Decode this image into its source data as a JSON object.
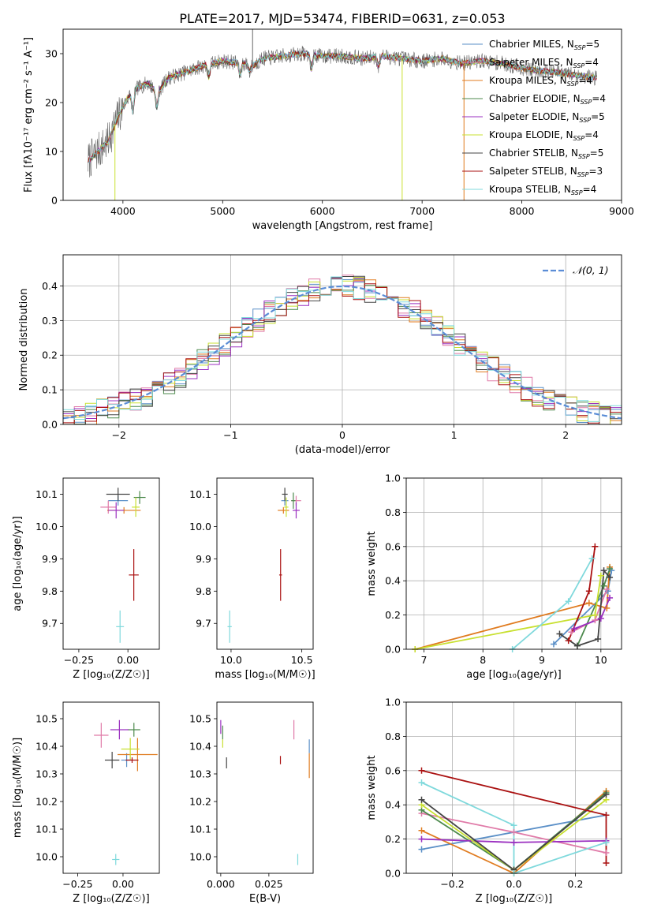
{
  "figure_title": "PLATE=2017, MJD=53474, FIBERID=0631, z=0.053",
  "colors": {
    "Chabrier MILES": "#5a8fc7",
    "Salpeter MILES": "#e07aa8",
    "Kroupa MILES": "#e07b1f",
    "Chabrier ELODIE": "#4d8a4d",
    "Salpeter ELODIE": "#9b30c0",
    "Kroupa ELODIE": "#c8e030",
    "Chabrier STELIB": "#444444",
    "Salpeter STELIB": "#aa1111",
    "Kroupa STELIB": "#7fd9dc",
    "normal": "#5b8dd6"
  },
  "chart_data": [
    {
      "id": "spectrum",
      "type": "line",
      "xlabel": "wavelength [Angstrom, rest frame]",
      "ylabel": "Flux [fλ10⁻¹⁷ erg cm⁻² s⁻¹ A⁻¹]",
      "xlim": [
        3400,
        9000
      ],
      "ylim": [
        0,
        35
      ],
      "xticks": [
        4000,
        5000,
        6000,
        7000,
        8000,
        9000
      ],
      "yticks": [
        0,
        10,
        20,
        30
      ],
      "legend_position": "top-right",
      "grid": false,
      "series": [
        {
          "name": "Chabrier MILES, N_SSP=5",
          "label_main": "Chabrier MILES, N",
          "label_sub": "SSP",
          "label_end": "=5"
        },
        {
          "name": "Salpeter MILES, N_SSP=4",
          "label_main": "Salpeter MILES, N",
          "label_sub": "SSP",
          "label_end": "=4"
        },
        {
          "name": "Kroupa MILES, N_SSP=4",
          "label_main": "Kroupa MILES, N",
          "label_sub": "SSP",
          "label_end": "=4"
        },
        {
          "name": "Chabrier ELODIE, N_SSP=4",
          "label_main": "Chabrier ELODIE, N",
          "label_sub": "SSP",
          "label_end": "=4"
        },
        {
          "name": "Salpeter ELODIE, N_SSP=5",
          "label_main": "Salpeter ELODIE, N",
          "label_sub": "SSP",
          "label_end": "=5"
        },
        {
          "name": "Kroupa ELODIE, N_SSP=4",
          "label_main": "Kroupa ELODIE, N",
          "label_sub": "SSP",
          "label_end": "=4"
        },
        {
          "name": "Chabrier STELIB, N_SSP=5",
          "label_main": "Chabrier STELIB, N",
          "label_sub": "SSP",
          "label_end": "=5"
        },
        {
          "name": "Salpeter STELIB, N_SSP=3",
          "label_main": "Salpeter STELIB, N",
          "label_sub": "SSP",
          "label_end": "=3"
        },
        {
          "name": "Kroupa STELIB, N_SSP=4",
          "label_main": "Kroupa STELIB, N",
          "label_sub": "SSP",
          "label_end": "=4"
        }
      ],
      "continuum": [
        [
          3650,
          8
        ],
        [
          3750,
          10
        ],
        [
          3850,
          12
        ],
        [
          3950,
          17
        ],
        [
          4050,
          21
        ],
        [
          4150,
          23
        ],
        [
          4250,
          24
        ],
        [
          4350,
          22
        ],
        [
          4450,
          25
        ],
        [
          4600,
          26
        ],
        [
          4800,
          27.5
        ],
        [
          5000,
          28.5
        ],
        [
          5200,
          28
        ],
        [
          5300,
          27.5
        ],
        [
          5400,
          29
        ],
        [
          5600,
          29.5
        ],
        [
          5800,
          30
        ],
        [
          6000,
          29.5
        ],
        [
          6200,
          29.5
        ],
        [
          6400,
          29
        ],
        [
          6600,
          29.5
        ],
        [
          6800,
          29
        ],
        [
          7000,
          28.5
        ],
        [
          7200,
          29
        ],
        [
          7400,
          28
        ],
        [
          7600,
          28.5
        ],
        [
          7800,
          28
        ],
        [
          8000,
          27
        ],
        [
          8200,
          26.5
        ],
        [
          8400,
          26
        ],
        [
          8600,
          25.5
        ],
        [
          8750,
          25
        ]
      ],
      "dips": [
        [
          4100,
          0.82
        ],
        [
          4340,
          0.85
        ],
        [
          4861,
          0.9
        ],
        [
          5175,
          0.9
        ],
        [
          5270,
          0.95
        ],
        [
          5890,
          0.9
        ],
        [
          6563,
          0.93
        ]
      ],
      "spikes": [
        [
          3920,
          0
        ],
        [
          5300,
          35
        ],
        [
          6800,
          0
        ],
        [
          7420,
          0
        ]
      ]
    },
    {
      "id": "residuals",
      "type": "histogram",
      "xlabel": "(data-model)/error",
      "ylabel": "Normed distribution",
      "xlim": [
        -2.5,
        2.5
      ],
      "ylim": [
        0,
        0.49
      ],
      "xticks": [
        -2,
        -1,
        0,
        1,
        2
      ],
      "yticks": [
        0.0,
        0.1,
        0.2,
        0.3,
        0.4
      ],
      "grid": true,
      "legend": "𝒩(0, 1)",
      "legend_position": "top-right"
    },
    {
      "id": "age-vs-Z",
      "type": "scatter",
      "xlabel": "Z [log₁₀(Z/Z☉)]",
      "ylabel": "age  [log₁₀(age/yr)]",
      "xlim": [
        -0.33,
        0.16
      ],
      "ylim": [
        9.62,
        10.15
      ],
      "xticks": [
        -0.25,
        0.0
      ],
      "yticks": [
        9.7,
        9.8,
        9.9,
        10.0,
        10.1
      ],
      "points": [
        {
          "m": "Chabrier MILES",
          "x": -0.05,
          "y": 10.08,
          "dx": 0.1,
          "dy": 0.03
        },
        {
          "m": "Salpeter MILES",
          "x": -0.1,
          "y": 10.06,
          "dx": 0.08,
          "dy": 0.04
        },
        {
          "m": "Kroupa MILES",
          "x": -0.02,
          "y": 10.05,
          "dx": 0.17,
          "dy": 0.02
        },
        {
          "m": "Chabrier ELODIE",
          "x": 0.06,
          "y": 10.09,
          "dx": 0.06,
          "dy": 0.04
        },
        {
          "m": "Salpeter ELODIE",
          "x": -0.06,
          "y": 10.05,
          "dx": 0.08,
          "dy": 0.05
        },
        {
          "m": "Kroupa ELODIE",
          "x": 0.04,
          "y": 10.06,
          "dx": 0.04,
          "dy": 0.06
        },
        {
          "m": "Chabrier STELIB",
          "x": -0.05,
          "y": 10.1,
          "dx": 0.12,
          "dy": 0.04
        },
        {
          "m": "Salpeter STELIB",
          "x": 0.03,
          "y": 9.85,
          "dx": 0.05,
          "dy": 0.16
        },
        {
          "m": "Kroupa STELIB",
          "x": -0.04,
          "y": 9.69,
          "dx": 0.04,
          "dy": 0.1
        }
      ]
    },
    {
      "id": "age-vs-mass",
      "type": "scatter",
      "xlabel": "mass [log₁₀(M/M☉)]",
      "ylim": [
        9.62,
        10.15
      ],
      "xlim": [
        9.9,
        10.58
      ],
      "xticks": [
        10.0,
        10.5
      ],
      "yticks": [
        9.7,
        9.8,
        9.9,
        10.0,
        10.1
      ],
      "points": [
        {
          "m": "Chabrier MILES",
          "x": 10.38,
          "y": 10.08,
          "dx": 0.05,
          "dy": 0.03
        },
        {
          "m": "Salpeter MILES",
          "x": 10.46,
          "y": 10.08,
          "dx": 0.07,
          "dy": 0.03
        },
        {
          "m": "Kroupa MILES",
          "x": 10.37,
          "y": 10.05,
          "dx": 0.08,
          "dy": 0.02
        },
        {
          "m": "Chabrier ELODIE",
          "x": 10.44,
          "y": 10.08,
          "dx": 0.03,
          "dy": 0.05
        },
        {
          "m": "Salpeter ELODIE",
          "x": 10.46,
          "y": 10.05,
          "dx": 0.05,
          "dy": 0.05
        },
        {
          "m": "Kroupa ELODIE",
          "x": 10.39,
          "y": 10.06,
          "dx": 0.03,
          "dy": 0.06
        },
        {
          "m": "Chabrier STELIB",
          "x": 10.38,
          "y": 10.1,
          "dx": 0.04,
          "dy": 0.04
        },
        {
          "m": "Salpeter STELIB",
          "x": 10.35,
          "y": 9.85,
          "dx": 0.02,
          "dy": 0.16
        },
        {
          "m": "Kroupa STELIB",
          "x": 9.99,
          "y": 9.69,
          "dx": 0.03,
          "dy": 0.1
        }
      ]
    },
    {
      "id": "weight-vs-age",
      "type": "line",
      "xlabel": "age  [log₁₀(age/yr)]",
      "ylabel": "mass weight",
      "xlim": [
        6.7,
        10.35
      ],
      "ylim": [
        0,
        1.0
      ],
      "xticks": [
        7,
        8,
        9,
        10
      ],
      "yticks": [
        0.0,
        0.2,
        0.4,
        0.6,
        0.8,
        1.0
      ],
      "grid": true,
      "series": [
        {
          "m": "Chabrier MILES",
          "pts": [
            [
              9.2,
              0.03
            ],
            [
              10.12,
              0.34
            ],
            [
              10.18,
              0.46
            ]
          ]
        },
        {
          "m": "Salpeter MILES",
          "pts": [
            [
              9.5,
              0.1
            ],
            [
              9.9,
              0.17
            ],
            [
              10.1,
              0.35
            ]
          ]
        },
        {
          "m": "Kroupa MILES",
          "pts": [
            [
              6.85,
              0.0
            ],
            [
              9.8,
              0.27
            ],
            [
              10.1,
              0.24
            ],
            [
              10.15,
              0.48
            ]
          ]
        },
        {
          "m": "Chabrier ELODIE",
          "pts": [
            [
              9.6,
              0.02
            ],
            [
              10.05,
              0.37
            ],
            [
              10.15,
              0.47
            ]
          ]
        },
        {
          "m": "Salpeter ELODIE",
          "pts": [
            [
              9.55,
              0.12
            ],
            [
              10.0,
              0.18
            ],
            [
              10.15,
              0.3
            ]
          ]
        },
        {
          "m": "Kroupa ELODIE",
          "pts": [
            [
              6.85,
              0.0
            ],
            [
              9.9,
              0.2
            ],
            [
              10.0,
              0.43
            ]
          ]
        },
        {
          "m": "Chabrier STELIB",
          "pts": [
            [
              9.3,
              0.09
            ],
            [
              9.6,
              0.02
            ],
            [
              9.95,
              0.06
            ],
            [
              10.05,
              0.46
            ],
            [
              10.15,
              0.42
            ]
          ]
        },
        {
          "m": "Salpeter STELIB",
          "pts": [
            [
              9.45,
              0.05
            ],
            [
              9.8,
              0.34
            ],
            [
              9.9,
              0.6
            ]
          ]
        },
        {
          "m": "Kroupa STELIB",
          "pts": [
            [
              8.5,
              0.0
            ],
            [
              9.45,
              0.28
            ],
            [
              9.85,
              0.53
            ]
          ]
        }
      ]
    },
    {
      "id": "mass-vs-Z",
      "type": "scatter",
      "xlabel": "Z [log₁₀(Z/Z☉)]",
      "ylabel": "mass [log₁₀(M/M☉)]",
      "xlim": [
        -0.33,
        0.2
      ],
      "ylim": [
        9.94,
        10.56
      ],
      "xticks": [
        -0.25,
        0.0
      ],
      "yticks": [
        10.0,
        10.1,
        10.2,
        10.3,
        10.4,
        10.5
      ],
      "points": [
        {
          "m": "Chabrier MILES",
          "x": 0.02,
          "y": 10.35,
          "dx": 0.06,
          "dy": 0.05
        },
        {
          "m": "Salpeter MILES",
          "x": -0.12,
          "y": 10.44,
          "dx": 0.08,
          "dy": 0.09
        },
        {
          "m": "Kroupa MILES",
          "x": 0.08,
          "y": 10.37,
          "dx": 0.22,
          "dy": 0.12
        },
        {
          "m": "Chabrier ELODIE",
          "x": 0.06,
          "y": 10.46,
          "dx": 0.07,
          "dy": 0.05
        },
        {
          "m": "Salpeter ELODIE",
          "x": -0.02,
          "y": 10.46,
          "dx": 0.1,
          "dy": 0.07
        },
        {
          "m": "Kroupa ELODIE",
          "x": 0.04,
          "y": 10.39,
          "dx": 0.1,
          "dy": 0.08
        },
        {
          "m": "Chabrier STELIB",
          "x": -0.06,
          "y": 10.35,
          "dx": 0.08,
          "dy": 0.06
        },
        {
          "m": "Salpeter STELIB",
          "x": 0.05,
          "y": 10.35,
          "dx": 0.07,
          "dy": 0.02
        },
        {
          "m": "Kroupa STELIB",
          "x": -0.04,
          "y": 9.99,
          "dx": 0.04,
          "dy": 0.04
        }
      ]
    },
    {
      "id": "mass-vs-EBV",
      "type": "scatter",
      "xlabel": "E(B-V)",
      "xlim": [
        -0.002,
        0.048
      ],
      "ylim": [
        9.94,
        10.56
      ],
      "xticks": [
        0.0,
        0.025
      ],
      "yticks": [
        10.0,
        10.1,
        10.2,
        10.3,
        10.4,
        10.5
      ],
      "points": [
        {
          "m": "Chabrier MILES",
          "x": 0.046,
          "y": 10.4,
          "dy": 0.05
        },
        {
          "m": "Salpeter MILES",
          "x": 0.038,
          "y": 10.46,
          "dy": 0.07
        },
        {
          "m": "Kroupa MILES",
          "x": 0.046,
          "y": 10.33,
          "dy": 0.09
        },
        {
          "m": "Chabrier ELODIE",
          "x": 0.001,
          "y": 10.45,
          "dy": 0.05
        },
        {
          "m": "Salpeter ELODIE",
          "x": 0.0,
          "y": 10.47,
          "dy": 0.05
        },
        {
          "m": "Kroupa ELODIE",
          "x": 0.001,
          "y": 10.41,
          "dy": 0.03
        },
        {
          "m": "Chabrier STELIB",
          "x": 0.003,
          "y": 10.34,
          "dy": 0.04
        },
        {
          "m": "Salpeter STELIB",
          "x": 0.031,
          "y": 10.35,
          "dy": 0.03
        },
        {
          "m": "Kroupa STELIB",
          "x": 0.04,
          "y": 9.99,
          "dy": 0.04
        }
      ]
    },
    {
      "id": "weight-vs-Z",
      "type": "line",
      "xlabel": "Z [log₁₀(Z/Z☉)]",
      "ylabel": "mass weight",
      "xlim": [
        -0.35,
        0.35
      ],
      "ylim": [
        0,
        1.0
      ],
      "xticks": [
        -0.2,
        0.0,
        0.2
      ],
      "yticks": [
        0.0,
        0.2,
        0.4,
        0.6,
        0.8,
        1.0
      ],
      "grid": true,
      "series": [
        {
          "m": "Chabrier MILES",
          "pts": [
            [
              -0.3,
              0.14
            ],
            [
              0.3,
              0.34
            ]
          ]
        },
        {
          "m": "Salpeter MILES",
          "pts": [
            [
              -0.3,
              0.35
            ],
            [
              0.0,
              0.24
            ],
            [
              0.3,
              0.12
            ]
          ]
        },
        {
          "m": "Kroupa MILES",
          "pts": [
            [
              -0.3,
              0.25
            ],
            [
              0.0,
              0.0
            ],
            [
              0.3,
              0.48
            ]
          ]
        },
        {
          "m": "Chabrier ELODIE",
          "pts": [
            [
              -0.3,
              0.37
            ],
            [
              0.0,
              0.02
            ],
            [
              0.3,
              0.47
            ]
          ]
        },
        {
          "m": "Salpeter ELODIE",
          "pts": [
            [
              -0.3,
              0.2
            ],
            [
              0.0,
              0.18
            ],
            [
              0.3,
              0.19
            ]
          ]
        },
        {
          "m": "Kroupa ELODIE",
          "pts": [
            [
              -0.3,
              0.4
            ],
            [
              0.0,
              0.02
            ],
            [
              0.3,
              0.43
            ]
          ]
        },
        {
          "m": "Chabrier STELIB",
          "pts": [
            [
              -0.3,
              0.43
            ],
            [
              0.0,
              0.02
            ],
            [
              0.3,
              0.46
            ]
          ]
        },
        {
          "m": "Salpeter STELIB",
          "pts": [
            [
              -0.3,
              0.6
            ],
            [
              0.3,
              0.34
            ],
            [
              0.3,
              0.06
            ]
          ]
        },
        {
          "m": "Kroupa STELIB",
          "pts": [
            [
              -0.3,
              0.53
            ],
            [
              0.0,
              0.28
            ],
            [
              0.0,
              0.0
            ],
            [
              0.3,
              0.18
            ]
          ]
        }
      ]
    }
  ]
}
